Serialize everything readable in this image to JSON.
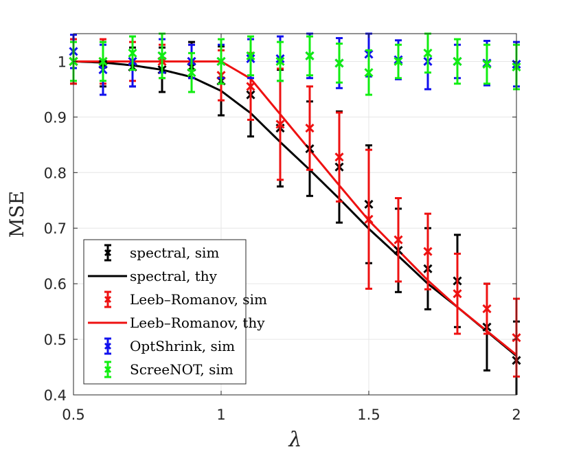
{
  "chart_data": {
    "type": "line",
    "title": "",
    "xlabel": "λ",
    "ylabel": "MSE",
    "xlim": [
      0.5,
      2
    ],
    "ylim": [
      0.4,
      1.05
    ],
    "grid": true,
    "legend_position": "bottom-left",
    "xticks": [
      "0.5",
      "1",
      "1.5",
      "2"
    ],
    "yticks": [
      "0.4",
      "0.5",
      "0.6",
      "0.7",
      "0.8",
      "0.9",
      "1"
    ],
    "x": [
      0.5,
      0.6,
      0.7,
      0.8,
      0.9,
      1.0,
      1.1,
      1.2,
      1.3,
      1.4,
      1.5,
      1.6,
      1.7,
      1.8,
      1.9,
      2.0
    ],
    "series": [
      {
        "name": "spectral, sim",
        "kind": "errorbar",
        "color": "#000000",
        "values": [
          1.0,
          0.995,
          0.99,
          0.985,
          0.99,
          0.965,
          0.94,
          0.88,
          0.843,
          0.81,
          0.743,
          0.66,
          0.627,
          0.605,
          0.522,
          0.462
        ],
        "err": [
          0.04,
          0.04,
          0.035,
          0.04,
          0.045,
          0.062,
          0.075,
          0.105,
          0.085,
          0.1,
          0.106,
          0.075,
          0.073,
          0.083,
          0.078,
          0.07
        ]
      },
      {
        "name": "spectral, thy",
        "kind": "line",
        "color": "#000000",
        "values": [
          1.0,
          0.998,
          0.993,
          0.985,
          0.972,
          0.947,
          0.907,
          0.855,
          0.805,
          0.753,
          0.699,
          0.65,
          0.6,
          0.558,
          0.514,
          0.47
        ]
      },
      {
        "name": "Leeb–Romanov, sim",
        "kind": "errorbar",
        "color": "#ee1111",
        "values": [
          1.0,
          1.0,
          1.0,
          1.0,
          1.0,
          0.975,
          0.955,
          0.887,
          0.88,
          0.828,
          0.716,
          0.679,
          0.658,
          0.582,
          0.555,
          0.503
        ],
        "err": [
          0.04,
          0.04,
          0.035,
          0.03,
          0.03,
          0.045,
          0.06,
          0.1,
          0.075,
          0.08,
          0.125,
          0.075,
          0.068,
          0.072,
          0.045,
          0.07
        ]
      },
      {
        "name": "Leeb–Romanov, thy",
        "kind": "line",
        "color": "#ee1111",
        "values": [
          1.0,
          1.0,
          1.0,
          1.0,
          1.0,
          1.0,
          0.969,
          0.905,
          0.841,
          0.777,
          0.714,
          0.66,
          0.606,
          0.558,
          0.515,
          0.472
        ]
      },
      {
        "name": "OptShrink, sim",
        "kind": "errorbar",
        "color": "#1010ee",
        "values": [
          1.018,
          0.985,
          1.0,
          1.01,
          1.0,
          1.0,
          1.005,
          1.005,
          1.01,
          0.997,
          1.013,
          1.003,
          1.0,
          1.0,
          0.997,
          0.995
        ],
        "err": [
          0.03,
          0.045,
          0.045,
          0.03,
          0.03,
          0.03,
          0.035,
          0.04,
          0.04,
          0.045,
          0.04,
          0.035,
          0.05,
          0.03,
          0.04,
          0.04
        ]
      },
      {
        "name": "ScreeNOT, sim",
        "kind": "errorbar",
        "color": "#11ee11",
        "values": [
          1.0,
          1.0,
          1.015,
          1.01,
          0.98,
          1.0,
          1.01,
          1.0,
          1.01,
          0.997,
          0.98,
          1.0,
          1.015,
          1.0,
          0.995,
          0.99
        ],
        "err": [
          0.035,
          0.035,
          0.03,
          0.04,
          0.035,
          0.04,
          0.035,
          0.035,
          0.035,
          0.035,
          0.04,
          0.03,
          0.035,
          0.04,
          0.035,
          0.04
        ]
      }
    ]
  }
}
